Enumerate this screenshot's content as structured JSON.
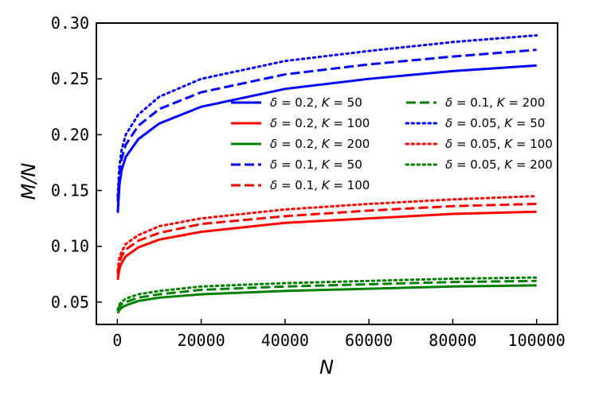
{
  "chart_data": {
    "type": "line",
    "title": "",
    "xlabel": "N",
    "ylabel": "M/N",
    "xlim": [
      -5000,
      105000
    ],
    "ylim": [
      0.03,
      0.3
    ],
    "xticks": [
      0,
      20000,
      40000,
      60000,
      80000,
      100000
    ],
    "xtick_labels": [
      "0",
      "20000",
      "40000",
      "60000",
      "80000",
      "100000"
    ],
    "yticks": [
      0.05,
      0.1,
      0.15,
      0.2,
      0.25,
      0.3
    ],
    "ytick_labels": [
      "0.05",
      "0.10",
      "0.15",
      "0.20",
      "0.25",
      "0.30"
    ],
    "grid": false,
    "legend_position": "upper-right",
    "x": [
      100,
      500,
      1000,
      2000,
      5000,
      10000,
      20000,
      40000,
      60000,
      80000,
      100000
    ],
    "series": [
      {
        "name": "δ = 0.2, K = 50",
        "label_parts": {
          "delta": "0.2",
          "k": "50"
        },
        "color": "#0000ff",
        "style": "solid",
        "values": [
          0.13,
          0.155,
          0.168,
          0.18,
          0.196,
          0.21,
          0.225,
          0.241,
          0.25,
          0.257,
          0.262
        ]
      },
      {
        "name": "δ = 0.2, K = 100",
        "label_parts": {
          "delta": "0.2",
          "k": "100"
        },
        "color": "#ff0000",
        "style": "solid",
        "values": [
          0.07,
          0.08,
          0.085,
          0.091,
          0.099,
          0.106,
          0.113,
          0.121,
          0.125,
          0.129,
          0.131
        ]
      },
      {
        "name": "δ = 0.2, K = 200",
        "label_parts": {
          "delta": "0.2",
          "k": "200"
        },
        "color": "#008000",
        "style": "solid",
        "values": [
          0.04,
          0.043,
          0.045,
          0.047,
          0.051,
          0.054,
          0.057,
          0.06,
          0.062,
          0.064,
          0.065
        ]
      },
      {
        "name": "δ = 0.1, K = 50",
        "label_parts": {
          "delta": "0.1",
          "k": "50"
        },
        "color": "#0000ff",
        "style": "dashed",
        "values": [
          0.14,
          0.165,
          0.178,
          0.191,
          0.208,
          0.223,
          0.238,
          0.254,
          0.263,
          0.27,
          0.276
        ]
      },
      {
        "name": "δ = 0.1, K = 100",
        "label_parts": {
          "delta": "0.1",
          "k": "100"
        },
        "color": "#ff0000",
        "style": "dashed",
        "values": [
          0.075,
          0.086,
          0.091,
          0.097,
          0.105,
          0.112,
          0.12,
          0.127,
          0.132,
          0.136,
          0.138
        ]
      },
      {
        "name": "δ = 0.1, K = 200",
        "label_parts": {
          "delta": "0.1",
          "k": "200"
        },
        "color": "#008000",
        "style": "dashed",
        "values": [
          0.042,
          0.046,
          0.048,
          0.05,
          0.054,
          0.057,
          0.061,
          0.064,
          0.066,
          0.068,
          0.069
        ]
      },
      {
        "name": "δ = 0.05, K = 50",
        "label_parts": {
          "delta": "0.05",
          "k": "50"
        },
        "color": "#0000ff",
        "style": "dotted",
        "values": [
          0.145,
          0.172,
          0.186,
          0.2,
          0.218,
          0.234,
          0.25,
          0.266,
          0.275,
          0.283,
          0.289
        ]
      },
      {
        "name": "δ = 0.05, K = 100",
        "label_parts": {
          "delta": "0.05",
          "k": "100"
        },
        "color": "#ff0000",
        "style": "dotted",
        "values": [
          0.078,
          0.09,
          0.095,
          0.102,
          0.11,
          0.118,
          0.125,
          0.133,
          0.138,
          0.142,
          0.145
        ]
      },
      {
        "name": "δ = 0.05, K = 200",
        "label_parts": {
          "delta": "0.05",
          "k": "200"
        },
        "color": "#008000",
        "style": "dotted",
        "values": [
          0.043,
          0.048,
          0.05,
          0.053,
          0.057,
          0.06,
          0.064,
          0.067,
          0.069,
          0.071,
          0.072
        ]
      }
    ]
  }
}
